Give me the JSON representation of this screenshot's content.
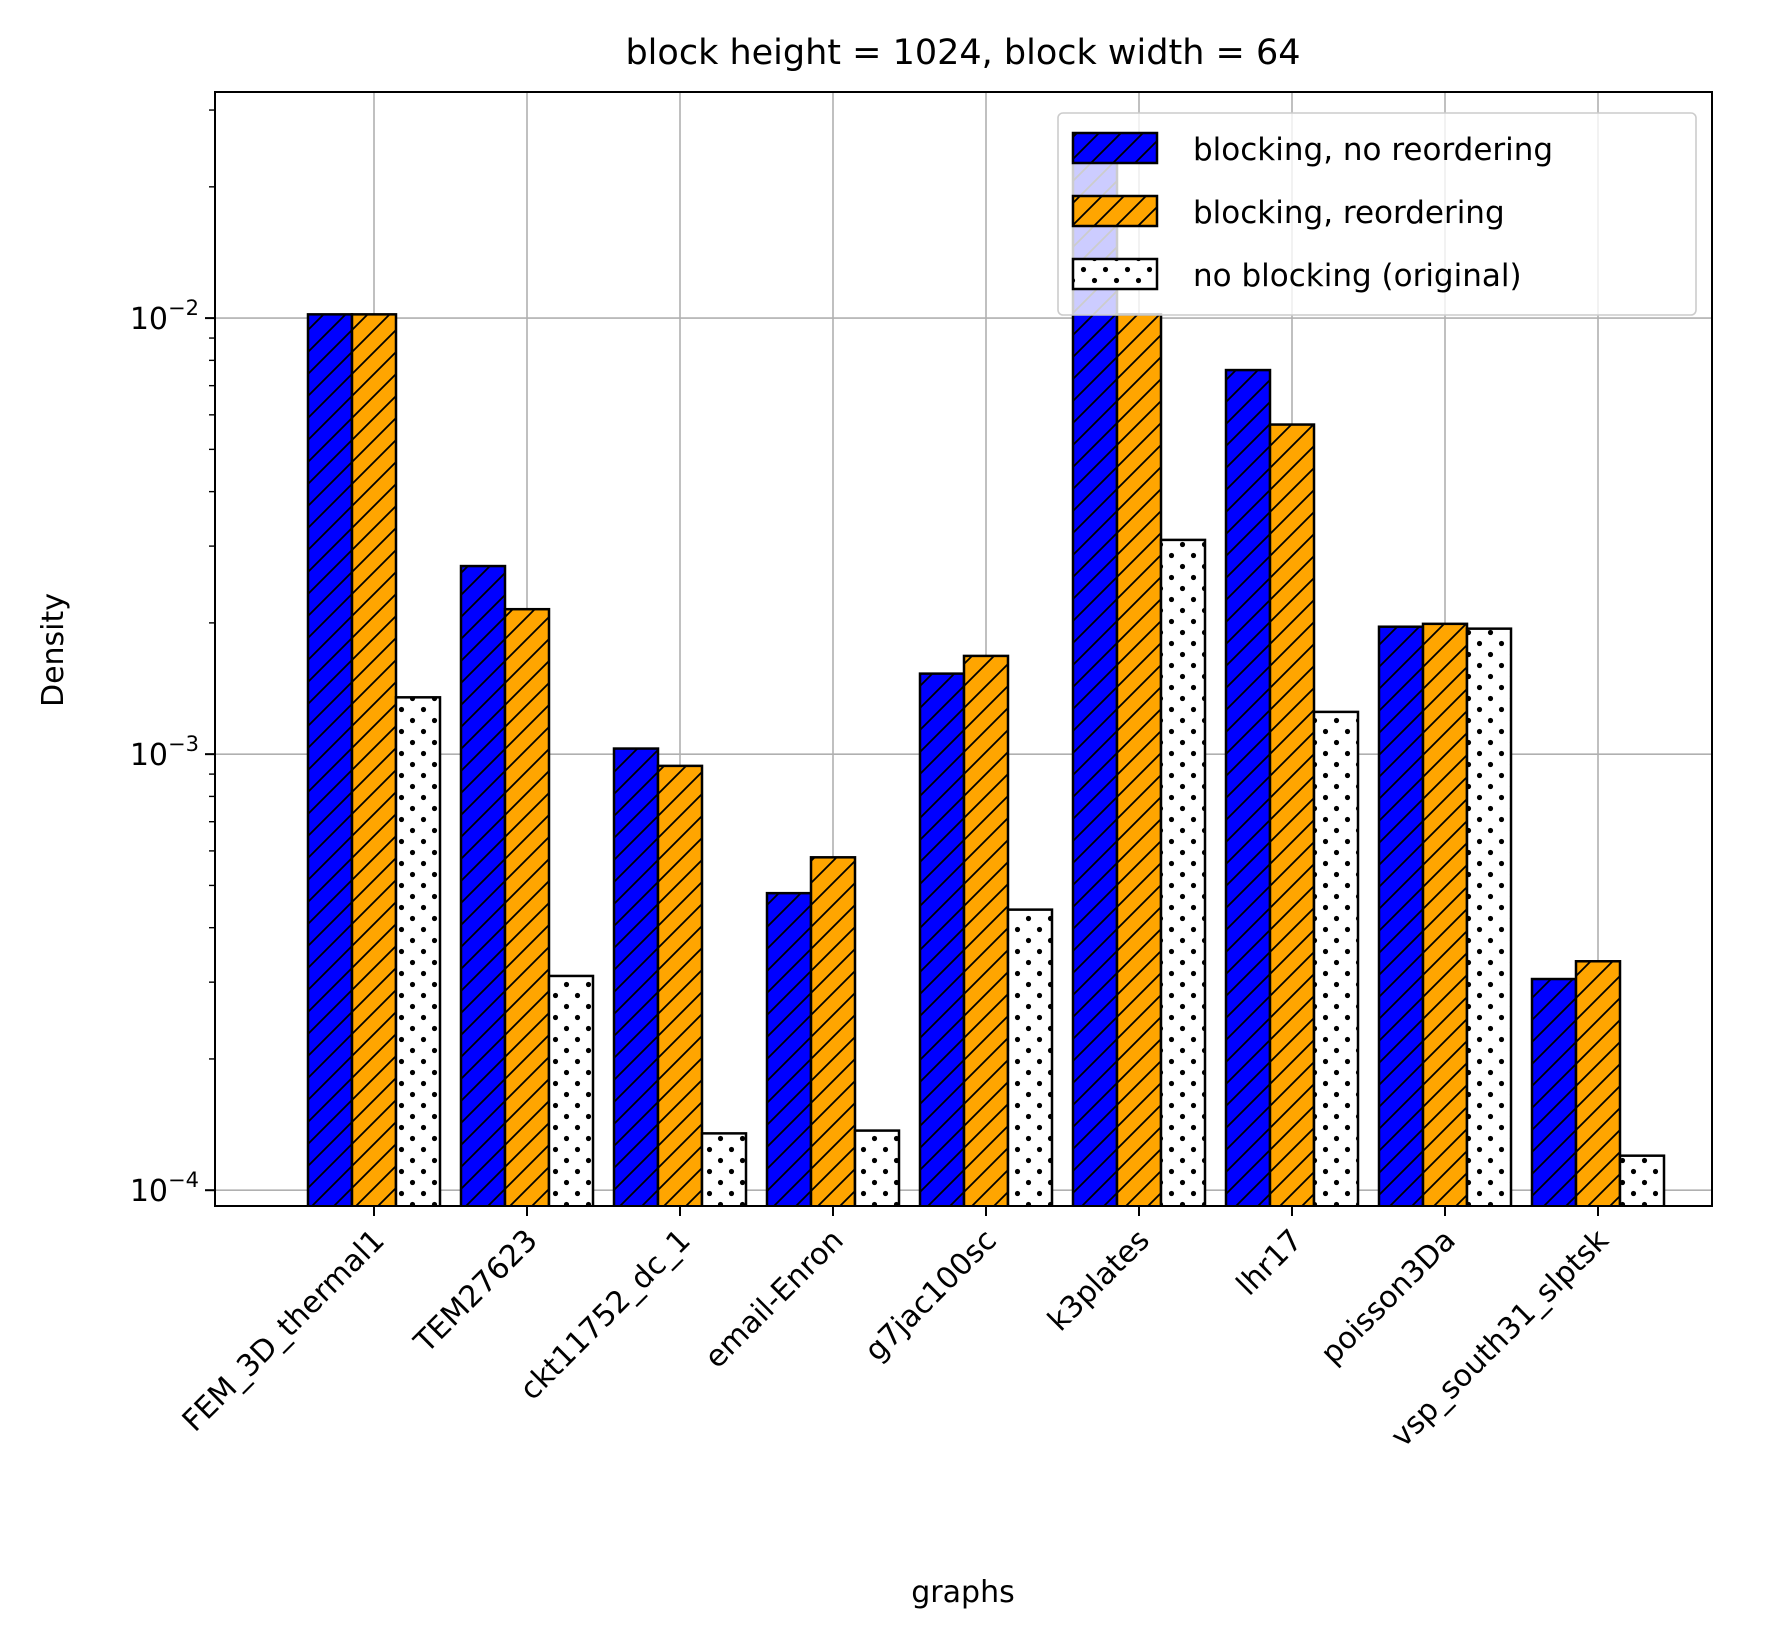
{
  "chart_data": {
    "type": "bar",
    "title": "block height = 1024, block width = 64",
    "xlabel": "graphs",
    "ylabel": "Density",
    "yscale": "log",
    "ylim": [
      9.2e-05,
      0.033
    ],
    "grid": true,
    "legend_position": "top-right",
    "categories": [
      "FEM_3D_thermal1",
      "TEM27623",
      "ckt11752_dc_1",
      "email-Enron",
      "g7jac100sc",
      "k3plates",
      "lhr17",
      "poisson3Da",
      "vsp_south31_slptsk"
    ],
    "yticks": [
      {
        "value": 0.0001,
        "base": "10",
        "exp": "−4"
      },
      {
        "value": 0.001,
        "base": "10",
        "exp": "−3"
      },
      {
        "value": 0.01,
        "base": "10",
        "exp": "−2"
      }
    ],
    "series": [
      {
        "name": "blocking, no reordering",
        "color": "#0000ff",
        "pattern": "hatch",
        "values": [
          0.0102,
          0.0027,
          0.00103,
          0.00048,
          0.00153,
          0.0255,
          0.0076,
          0.00196,
          0.000305
        ]
      },
      {
        "name": "blocking, reordering",
        "color": "#ffa500",
        "pattern": "hatch",
        "values": [
          0.0102,
          0.00215,
          0.00094,
          0.00058,
          0.00168,
          0.0102,
          0.0057,
          0.00199,
          0.000335
        ]
      },
      {
        "name": "no blocking (original)",
        "color": "#ffffff",
        "pattern": "dots",
        "values": [
          0.00135,
          0.00031,
          0.000135,
          0.000137,
          0.00044,
          0.0031,
          0.00125,
          0.00194,
          0.00012
        ]
      }
    ]
  }
}
